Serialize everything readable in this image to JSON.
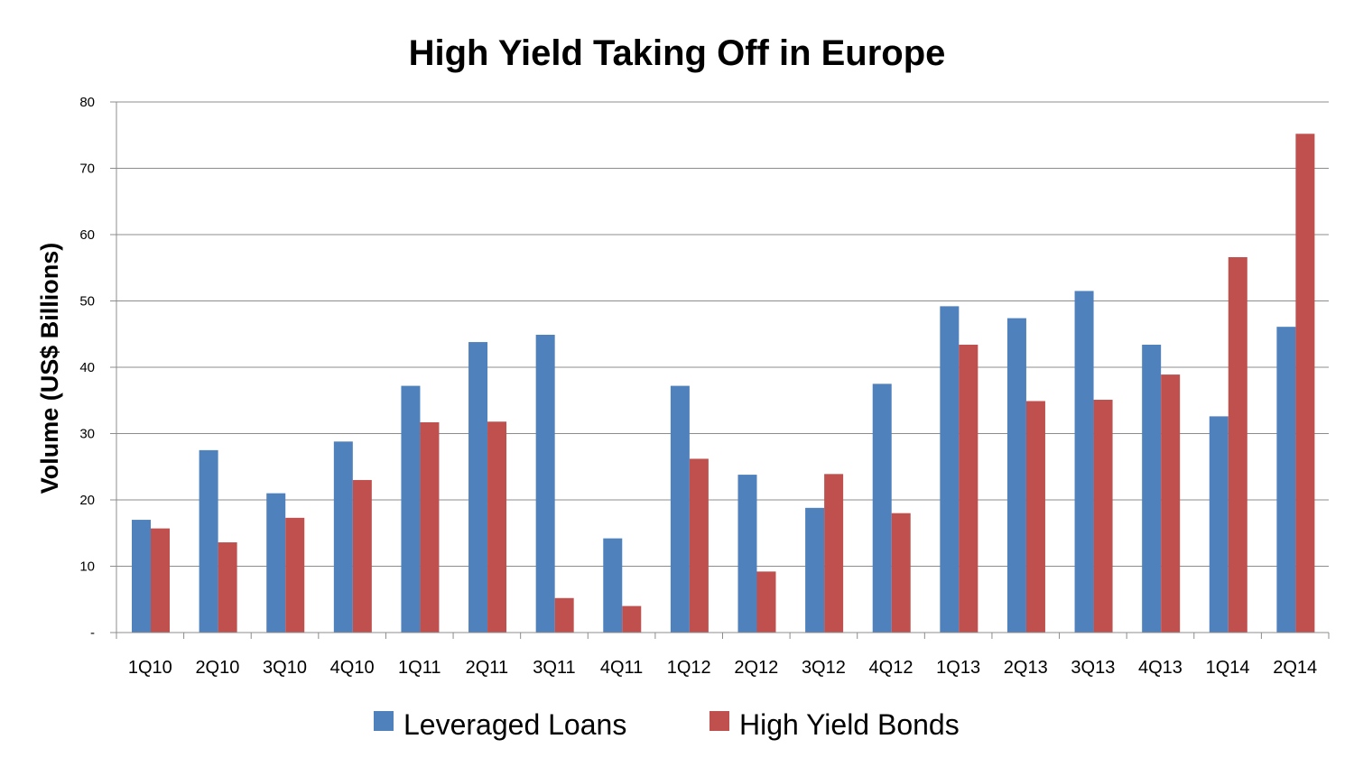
{
  "chart_data": {
    "type": "bar",
    "title": "High Yield Taking Off in Europe",
    "xlabel": "",
    "ylabel": "Volume (US$ Billions)",
    "ylim": [
      0,
      80
    ],
    "yticks": [
      0,
      10,
      20,
      30,
      40,
      50,
      60,
      70,
      80
    ],
    "ytick_labels": [
      "-",
      "10",
      "20",
      "30",
      "40",
      "50",
      "60",
      "70",
      "80"
    ],
    "grid": true,
    "legend_position": "bottom",
    "categories": [
      "1Q10",
      "2Q10",
      "3Q10",
      "4Q10",
      "1Q11",
      "2Q11",
      "3Q11",
      "4Q11",
      "1Q12",
      "2Q12",
      "3Q12",
      "4Q12",
      "1Q13",
      "2Q13",
      "3Q13",
      "4Q13",
      "1Q14",
      "2Q14"
    ],
    "series": [
      {
        "name": "Leveraged Loans",
        "color": "#4F81BD",
        "values": [
          17.0,
          27.5,
          21.0,
          28.8,
          37.2,
          43.8,
          44.9,
          14.2,
          37.2,
          23.8,
          18.8,
          37.5,
          49.2,
          47.4,
          51.5,
          43.4,
          32.6,
          46.1
        ]
      },
      {
        "name": "High Yield Bonds",
        "color": "#C0504D",
        "values": [
          15.7,
          13.6,
          17.3,
          23.0,
          31.7,
          31.8,
          5.2,
          4.0,
          26.2,
          9.2,
          23.9,
          18.0,
          43.4,
          34.9,
          35.1,
          38.9,
          56.6,
          75.2
        ]
      }
    ]
  }
}
